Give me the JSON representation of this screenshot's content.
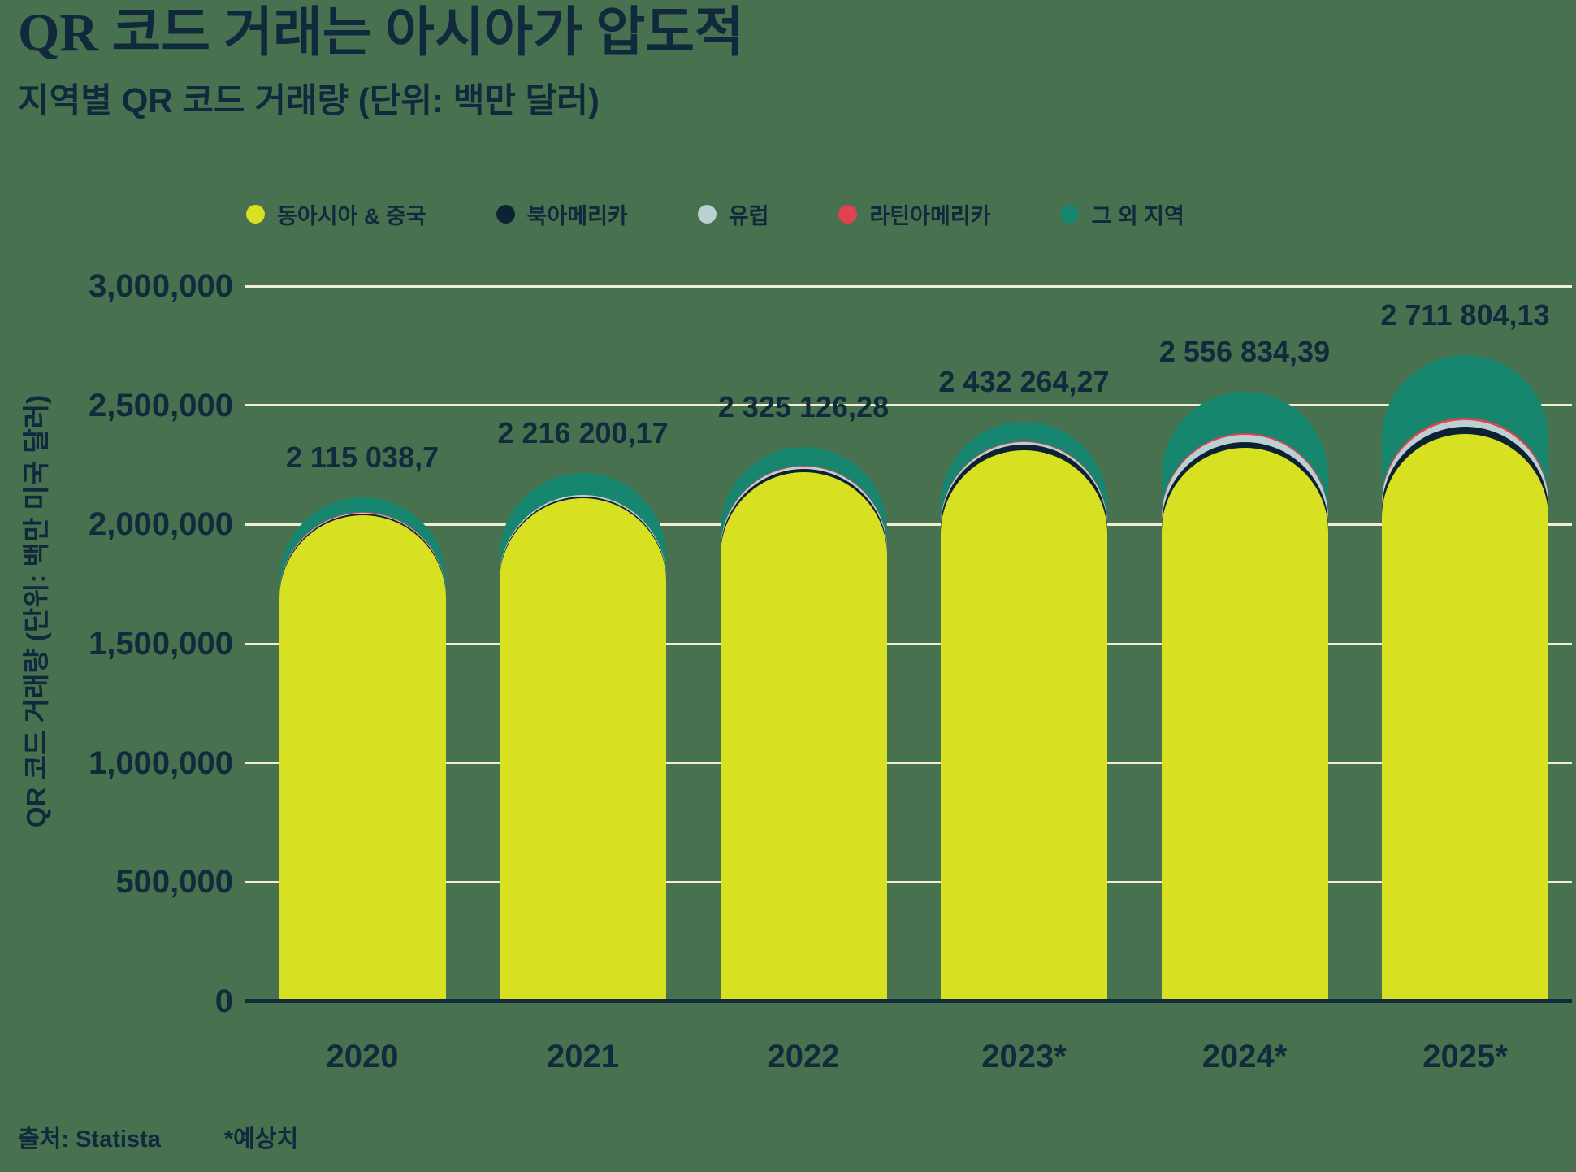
{
  "header": {
    "title": "QR 코드 거래는 아시아가 압도적",
    "subtitle": "지역별 QR 코드 거래량 (단위: 백만 달러)"
  },
  "legend": {
    "items": [
      {
        "label": "동아시아 & 중국",
        "color": "#d7e122"
      },
      {
        "label": "북아메리카",
        "color": "#0c2132"
      },
      {
        "label": "유럽",
        "color": "#bad0d2"
      },
      {
        "label": "라틴아메리카",
        "color": "#e04250"
      },
      {
        "label": "그 외 지역",
        "color": "#17866f"
      }
    ]
  },
  "chart_data": {
    "type": "bar",
    "stacked": true,
    "title": "QR 코드 거래는 아시아가 압도적",
    "subtitle": "지역별 QR 코드 거래량 (단위: 백만 달러)",
    "ylabel": "QR 코드 거래량 (단위: 백만 미국 달러)",
    "xlabel": "",
    "categories": [
      "2020",
      "2021",
      "2022",
      "2023*",
      "2024*",
      "2025*"
    ],
    "series": [
      {
        "name": "동아시아 & 중국",
        "color": "#d7e122",
        "values": [
          2040000,
          2110000,
          2220000,
          2310000,
          2320000,
          2380000
        ]
      },
      {
        "name": "북아메리카",
        "color": "#0c2132",
        "values": [
          6000,
          8000,
          14000,
          24000,
          27000,
          31000
        ]
      },
      {
        "name": "유럽",
        "color": "#bad0d2",
        "values": [
          4000,
          5000,
          9000,
          12000,
          30000,
          28000
        ]
      },
      {
        "name": "라틴아메리카",
        "color": "#e04250",
        "values": [
          1500,
          2000,
          3000,
          4000,
          5000,
          10000
        ]
      },
      {
        "name": "그 외 지역",
        "color": "#17866f",
        "values": [
          63538.7,
          91200.17,
          79126.28,
          82264.27,
          174834.39,
          262804.13
        ]
      }
    ],
    "totals": [
      2115038.7,
      2216200.17,
      2325126.28,
      2432264.27,
      2556834.39,
      2711804.13
    ],
    "total_labels": [
      "2 115 038,7",
      "2 216 200,17",
      "2 325 126,28",
      "2 432 264,27",
      "2 556 834,39",
      "2 711 804,13"
    ],
    "ymax": 3000000,
    "ytick_step": 500000,
    "ytick_labels": [
      "3,000,000",
      "2,500,000",
      "2,000,000",
      "1,500,000",
      "1,000,000",
      "500,000",
      "0"
    ],
    "grid": true,
    "legend_position": "top",
    "note": "series values are visual estimates; totals are the labeled values"
  },
  "footer": {
    "source": "출처: Statista",
    "estimate_note": "*예상치"
  },
  "colors": {
    "background": "#48714f",
    "text": "#10293c",
    "gridline": "#f3edd5",
    "axis": "#112b3d"
  }
}
